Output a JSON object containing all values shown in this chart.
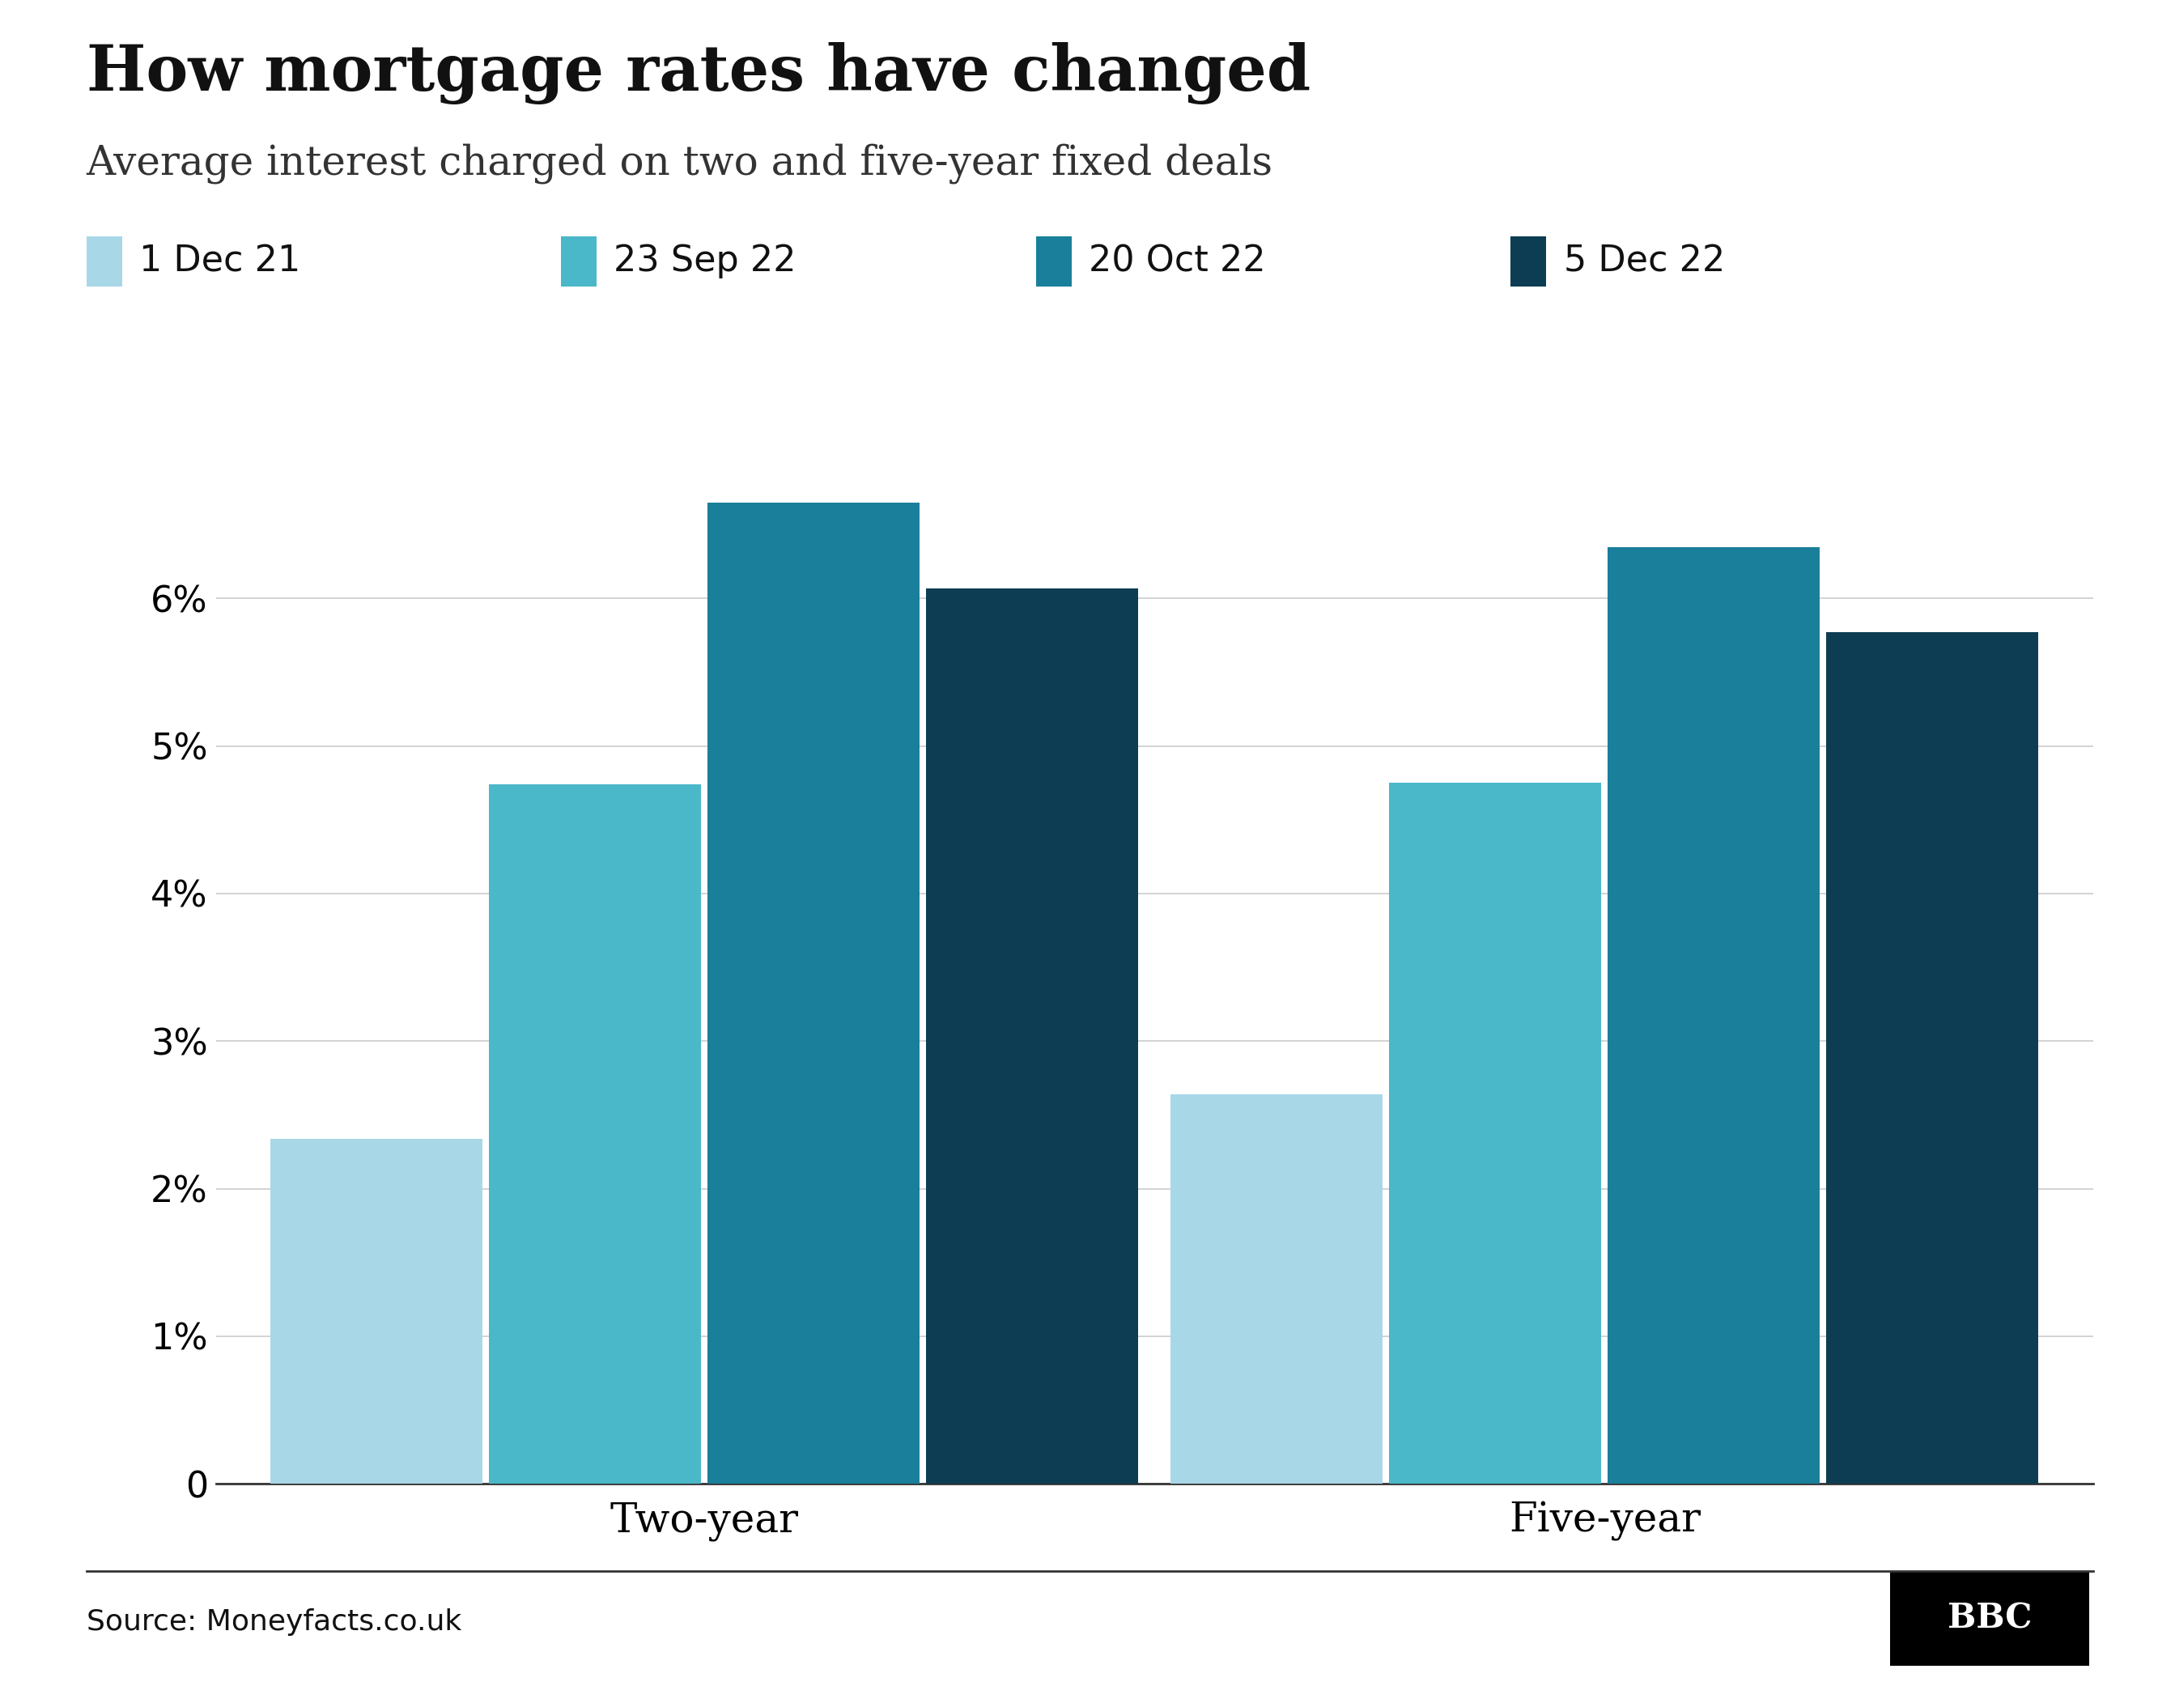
{
  "title": "How mortgage rates have changed",
  "subtitle": "Average interest charged on two and five-year fixed deals",
  "source": "Source: Moneyfacts.co.uk",
  "categories": [
    "Two-year",
    "Five-year"
  ],
  "legend_labels": [
    "1 Dec 21",
    "23 Sep 22",
    "20 Oct 22",
    "5 Dec 22"
  ],
  "colors": [
    "#a8d8e8",
    "#4ab8c8",
    "#1a7f9a",
    "#0d3d52"
  ],
  "values": {
    "Two-year": [
      2.34,
      4.74,
      6.65,
      6.07
    ],
    "Five-year": [
      2.64,
      4.75,
      6.35,
      5.77
    ]
  },
  "ylim": [
    0,
    7.2
  ],
  "yticks": [
    0,
    1,
    2,
    3,
    4,
    5,
    6
  ],
  "ytick_labels": [
    "0",
    "1%",
    "2%",
    "3%",
    "4%",
    "5%",
    "6%"
  ],
  "background_color": "#ffffff",
  "title_fontsize": 56,
  "subtitle_fontsize": 36,
  "tick_fontsize": 32,
  "legend_fontsize": 32,
  "source_fontsize": 26,
  "xtick_fontsize": 36,
  "group_centers": [
    0.3,
    1.0
  ],
  "group_width": 0.68,
  "xlim": [
    -0.08,
    1.38
  ]
}
